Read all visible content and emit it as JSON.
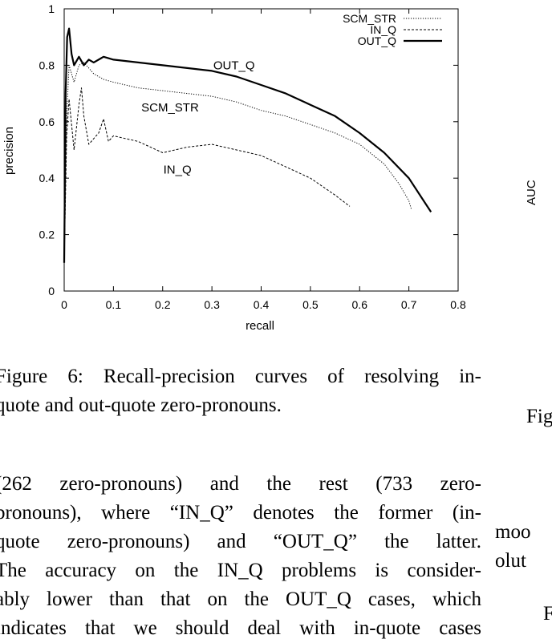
{
  "chart_data": {
    "type": "line",
    "title": "",
    "xlabel": "recall",
    "ylabel": "precision",
    "xlim": [
      0,
      0.8
    ],
    "ylim": [
      0,
      1
    ],
    "x_ticks": [
      "0",
      "0.1",
      "0.2",
      "0.3",
      "0.4",
      "0.5",
      "0.6",
      "0.7",
      "0.8"
    ],
    "y_ticks": [
      "0",
      "0.2",
      "0.4",
      "0.6",
      "0.8",
      "1"
    ],
    "legend": {
      "position": "top-right",
      "entries": [
        "SCM_STR",
        "IN_Q",
        "OUT_Q"
      ]
    },
    "annotations": [
      {
        "text": "OUT_Q",
        "x": 0.345,
        "y": 0.8
      },
      {
        "text": "SCM_STR",
        "x": 0.215,
        "y": 0.65
      },
      {
        "text": "IN_Q",
        "x": 0.23,
        "y": 0.43
      }
    ],
    "series": [
      {
        "name": "SCM_STR",
        "style": "dotted",
        "x": [
          0.0,
          0.005,
          0.01,
          0.02,
          0.03,
          0.04,
          0.05,
          0.06,
          0.08,
          0.1,
          0.15,
          0.2,
          0.25,
          0.3,
          0.35,
          0.4,
          0.45,
          0.5,
          0.55,
          0.6,
          0.65,
          0.68,
          0.7,
          0.705
        ],
        "y": [
          0.1,
          0.62,
          0.8,
          0.74,
          0.8,
          0.81,
          0.79,
          0.77,
          0.75,
          0.74,
          0.72,
          0.71,
          0.7,
          0.69,
          0.67,
          0.64,
          0.62,
          0.59,
          0.56,
          0.52,
          0.45,
          0.38,
          0.32,
          0.29
        ]
      },
      {
        "name": "IN_Q",
        "style": "dashed",
        "x": [
          0.0,
          0.005,
          0.01,
          0.02,
          0.03,
          0.035,
          0.04,
          0.05,
          0.06,
          0.07,
          0.08,
          0.09,
          0.1,
          0.15,
          0.2,
          0.25,
          0.3,
          0.35,
          0.4,
          0.45,
          0.5,
          0.55,
          0.58
        ],
        "y": [
          0.1,
          0.55,
          0.68,
          0.5,
          0.66,
          0.72,
          0.62,
          0.52,
          0.54,
          0.56,
          0.61,
          0.53,
          0.55,
          0.53,
          0.49,
          0.51,
          0.52,
          0.5,
          0.48,
          0.44,
          0.4,
          0.34,
          0.3
        ]
      },
      {
        "name": "OUT_Q",
        "style": "solid",
        "x": [
          0.0,
          0.003,
          0.006,
          0.01,
          0.015,
          0.02,
          0.03,
          0.04,
          0.05,
          0.06,
          0.08,
          0.1,
          0.15,
          0.2,
          0.25,
          0.3,
          0.35,
          0.4,
          0.45,
          0.5,
          0.55,
          0.6,
          0.65,
          0.7,
          0.73,
          0.745
        ],
        "y": [
          0.1,
          0.7,
          0.9,
          0.93,
          0.84,
          0.8,
          0.83,
          0.8,
          0.82,
          0.81,
          0.83,
          0.82,
          0.81,
          0.8,
          0.79,
          0.78,
          0.76,
          0.73,
          0.7,
          0.66,
          0.62,
          0.56,
          0.49,
          0.4,
          0.32,
          0.28
        ]
      }
    ]
  },
  "right_column": {
    "axis_label": "AUC",
    "caption_fragment": "Fig",
    "line1": "moo",
    "line2": "olut",
    "line3": "F"
  },
  "caption": {
    "line1": "Figure 6: Recall-precision curves of resolving in-",
    "line2": "quote and out-quote zero-pronouns."
  },
  "body": {
    "line1": "(262 zero-pronouns) and the rest (733 zero-",
    "line2": "pronouns), where “IN_Q” denotes the former (in-",
    "line3": "quote zero-pronouns) and “OUT_Q” the latter.",
    "line4": "The accuracy on the IN_Q problems is consider-",
    "line5": "ably lower than that on the OUT_Q cases, which",
    "line6": "indicates that we should deal with in-quote cases"
  }
}
